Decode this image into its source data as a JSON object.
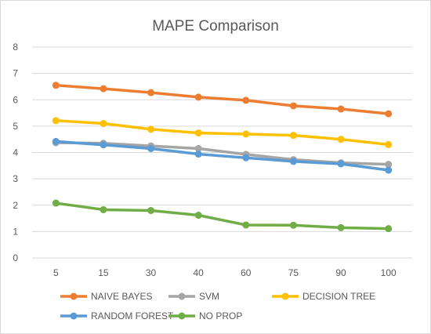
{
  "chart_data": {
    "type": "line",
    "title": "MAPE Comparison",
    "xlabel": "",
    "ylabel": "",
    "categories": [
      "5",
      "15",
      "30",
      "40",
      "60",
      "75",
      "90",
      "100"
    ],
    "ylim": [
      0,
      8
    ],
    "yticks": [
      "0",
      "1",
      "2",
      "3",
      "4",
      "5",
      "6",
      "7",
      "8"
    ],
    "grid": true,
    "legend_position": "bottom",
    "series": [
      {
        "name": "NAIVE BAYES",
        "color": "#ed7d31",
        "values": [
          6.55,
          6.42,
          6.27,
          6.1,
          5.98,
          5.77,
          5.65,
          5.47
        ]
      },
      {
        "name": "SVM",
        "color": "#a5a5a5",
        "values": [
          4.37,
          4.35,
          4.25,
          4.15,
          3.93,
          3.73,
          3.61,
          3.55
        ]
      },
      {
        "name": "DECISION TREE",
        "color": "#ffc000",
        "values": [
          5.21,
          5.1,
          4.88,
          4.74,
          4.7,
          4.65,
          4.5,
          4.3
        ]
      },
      {
        "name": "RANDOM FOREST",
        "color": "#5b9bd5",
        "values": [
          4.42,
          4.29,
          4.15,
          3.94,
          3.8,
          3.66,
          3.57,
          3.33
        ]
      },
      {
        "name": "NO PROP",
        "color": "#70ad47",
        "values": [
          2.08,
          1.83,
          1.8,
          1.62,
          1.25,
          1.24,
          1.15,
          1.11
        ]
      }
    ]
  }
}
